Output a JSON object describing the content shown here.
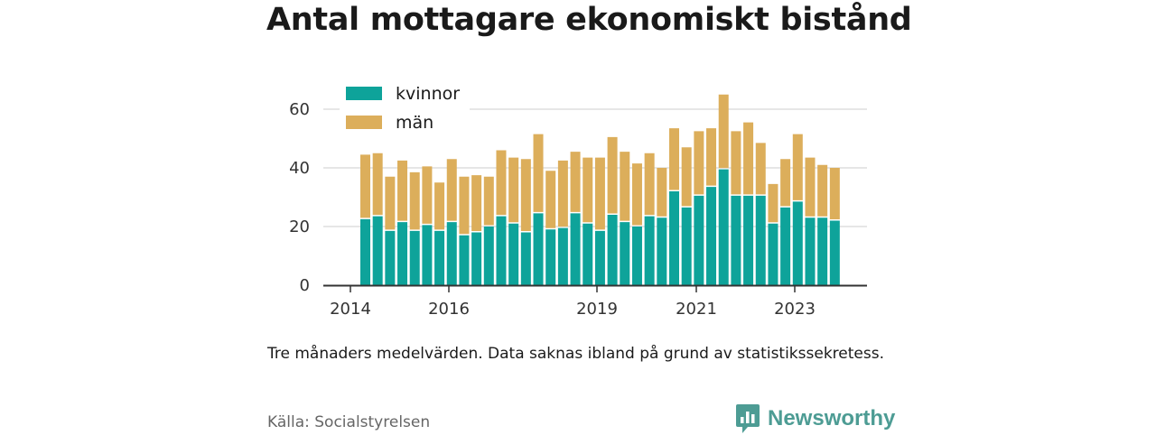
{
  "title": "Antal mottagare ekonomiskt bistånd",
  "caption": "Tre månaders medelvärden. Data saknas ibland på grund av statistikssekretess.",
  "source": "Källa: Socialstyrelsen",
  "brand": {
    "name": "Newsworthy",
    "icon": "bar-chart-speech-bubble-icon",
    "color": "#4d9c94"
  },
  "colors": {
    "kvinnor": "#0ea39a",
    "man": "#dcae5b",
    "grid": "#dddddd",
    "axis": "#333333"
  },
  "chart_data": {
    "type": "bar",
    "stacked": true,
    "legend_position": "top-left",
    "grid": true,
    "ylim": [
      0,
      65
    ],
    "yticks": [
      "0",
      "20",
      "40",
      "60"
    ],
    "xticks": [
      "2014",
      "2016",
      "2019",
      "2021",
      "2023"
    ],
    "series": [
      {
        "name": "kvinnor",
        "values": [
          22.5,
          23.5,
          18.5,
          21.5,
          18.5,
          20.5,
          18.5,
          21.5,
          17,
          18,
          20,
          23.5,
          21,
          18,
          24.5,
          19,
          19.5,
          24.5,
          21,
          18.5,
          24,
          21.5,
          20,
          23.5,
          23,
          32,
          26.5,
          30.5,
          33.5,
          39.5,
          30.5,
          30.5,
          30.5,
          21,
          26.5,
          28.5,
          23,
          23,
          22
        ]
      },
      {
        "name": "män",
        "values": [
          22,
          21.5,
          18.5,
          21,
          20,
          20,
          16.5,
          21.5,
          20,
          19.5,
          17,
          22.5,
          22.5,
          25,
          27,
          20,
          23,
          21,
          22.5,
          25,
          26.5,
          24,
          21.5,
          21.5,
          17,
          21.5,
          20.5,
          22,
          20,
          25.5,
          22,
          25,
          18,
          13.5,
          16.5,
          23,
          20.5,
          18,
          18
        ]
      }
    ]
  }
}
